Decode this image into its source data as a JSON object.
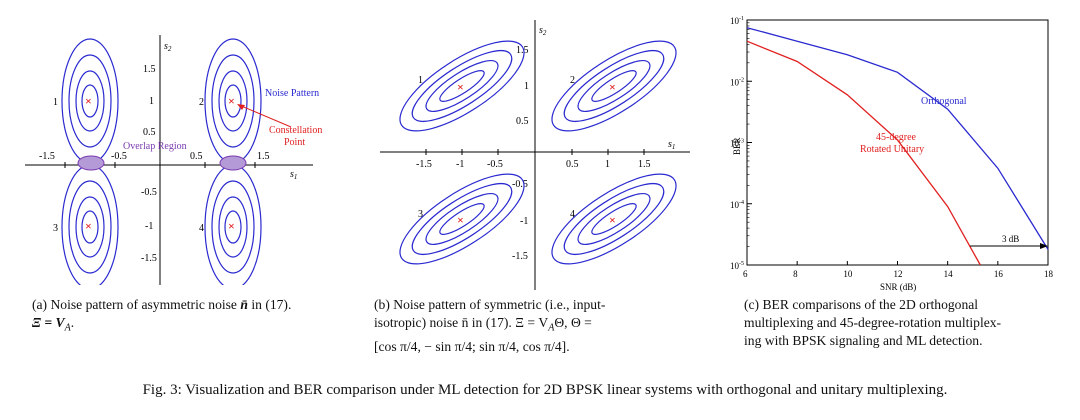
{
  "panel_a": {
    "s1_label": "s",
    "s1_sub": "1",
    "s2_label": "s",
    "s2_sub": "2",
    "x_ticks": [
      "-1.5",
      "-0.5",
      "0.5",
      "1.5"
    ],
    "y_ticks": [
      "1.5",
      "1",
      "0.5",
      "-0.5",
      "-1",
      "-1.5"
    ],
    "point_labels": [
      "1",
      "2",
      "3",
      "4"
    ],
    "annotation_noise": "Noise Pattern",
    "annotation_overlap": "Overlap Region",
    "annotation_constellation_line1": "Constellation",
    "annotation_constellation_line2": "Point",
    "colors": {
      "contour": "#2a2ad0",
      "marker": "#e02020",
      "overlap": "#7a3bb0",
      "constellation": "#e02020"
    }
  },
  "panel_b": {
    "s1_label": "s",
    "s1_sub": "1",
    "s2_label": "s",
    "s2_sub": "2",
    "x_ticks": [
      "-1.5",
      "-1",
      "-0.5",
      "0.5",
      "1",
      "1.5"
    ],
    "y_ticks": [
      "1.5",
      "1",
      "0.5",
      "-0.5",
      "-1",
      "-1.5"
    ],
    "point_labels": [
      "1",
      "2",
      "3",
      "4"
    ],
    "colors": {
      "contour": "#2a2ad0",
      "marker": "#e02020"
    }
  },
  "chart_data": {
    "type": "line",
    "title": "",
    "xlabel": "SNR (dB)",
    "ylabel": "BER",
    "xlim": [
      6,
      18
    ],
    "ylim": [
      1e-05,
      0.1
    ],
    "yscale": "log",
    "x_ticks": [
      "6",
      "8",
      "10",
      "12",
      "14",
      "16",
      "18"
    ],
    "y_ticks": [
      "10",
      "10",
      "10",
      "10",
      "10"
    ],
    "y_tick_exponents": [
      "-1",
      "-2",
      "-3",
      "-4",
      "-5"
    ],
    "series": [
      {
        "name": "Orthogonal",
        "color": "#2a2ad0",
        "x": [
          6,
          8,
          10,
          12,
          14,
          16,
          18
        ],
        "y": [
          0.075,
          0.045,
          0.027,
          0.014,
          0.0035,
          0.00038,
          1.8e-05
        ]
      },
      {
        "name": "45-degree Rotated Unitary",
        "color": "#e02020",
        "x": [
          6,
          8,
          10,
          12,
          14,
          15.3
        ],
        "y": [
          0.045,
          0.021,
          0.006,
          0.0011,
          9e-05,
          1e-05
        ]
      }
    ],
    "labels": {
      "orthogonal": "Orthogonal",
      "rotated_line1": "45-degree",
      "rotated_line2": "Rotated Unitary",
      "gap": "3 dB"
    }
  },
  "captions": {
    "a_line1": "(a) Noise pattern of asymmetric noise",
    "a_sym": "n̄",
    "a_line1_end": "in (17).",
    "a_line2": "Ξ = V",
    "a_line2_sub": "A",
    "a_line2_end": ".",
    "b_line1": "(b) Noise pattern of symmetric (i.e., input-",
    "b_line2": "isotropic) noise n̄ in (17). Ξ = V",
    "b_line2_sub": "A",
    "b_line2_end": "Θ, Θ =",
    "b_line3": "[cos π/4, − sin π/4; sin π/4, cos π/4].",
    "c_line1": "(c) BER comparisons of the 2D orthogonal",
    "c_line2": "multiplexing and 45-degree-rotation multiplex-",
    "c_line3": "ing with BPSK signaling and ML detection.",
    "figure": "Fig. 3: Visualization and BER comparison under ML detection for 2D BPSK linear systems with orthogonal and unitary multiplexing."
  }
}
